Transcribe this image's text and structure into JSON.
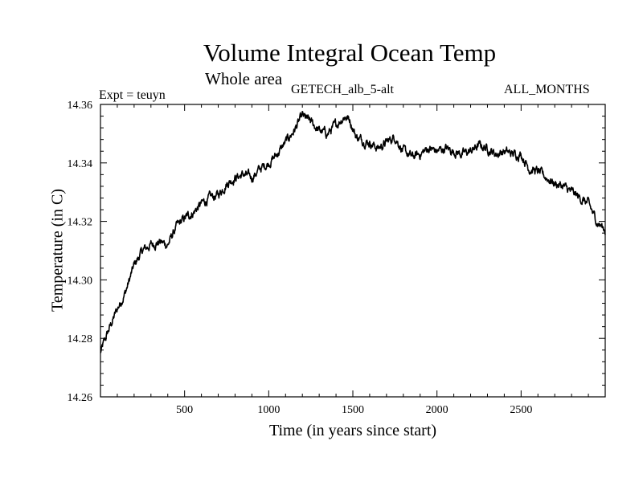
{
  "chart_data": {
    "type": "line",
    "title": "Volume Integral Ocean Temp",
    "subtitle": "Whole area",
    "annotations": {
      "left": "Expt = teuyn",
      "center": "GETECH_alb_5-alt",
      "right": "ALL_MONTHS"
    },
    "xlabel": "Time (in years since start)",
    "ylabel": "Temperature (in C)",
    "xlim": [
      0,
      3000
    ],
    "ylim": [
      14.26,
      14.36
    ],
    "xticks": [
      500,
      1000,
      1500,
      2000,
      2500
    ],
    "yticks": [
      "14.26",
      "14.28",
      "14.30",
      "14.32",
      "14.34",
      "14.36"
    ],
    "grid": false,
    "series": [
      {
        "x": [
          0,
          50,
          100,
          150,
          200,
          250,
          300,
          350,
          400,
          450,
          500,
          550,
          600,
          650,
          700,
          750,
          800,
          850,
          900,
          950,
          1000,
          1050,
          1100,
          1150,
          1200,
          1250,
          1300,
          1350,
          1400,
          1450,
          1480,
          1520,
          1550,
          1600,
          1650,
          1700,
          1750,
          1800,
          1850,
          1900,
          1950,
          2000,
          2050,
          2100,
          2150,
          2200,
          2250,
          2300,
          2350,
          2400,
          2450,
          2500,
          2550,
          2600,
          2650,
          2700,
          2750,
          2800,
          2850,
          2900,
          2950,
          3000
        ],
        "y": [
          14.275,
          14.283,
          14.29,
          14.296,
          14.305,
          14.31,
          14.312,
          14.313,
          14.312,
          14.318,
          14.321,
          14.323,
          14.326,
          14.328,
          14.329,
          14.333,
          14.335,
          14.336,
          14.335,
          14.338,
          14.34,
          14.343,
          14.347,
          14.351,
          14.356,
          14.354,
          14.351,
          14.35,
          14.353,
          14.356,
          14.355,
          14.349,
          14.348,
          14.347,
          14.345,
          14.347,
          14.349,
          14.344,
          14.342,
          14.343,
          14.345,
          14.344,
          14.345,
          14.344,
          14.343,
          14.344,
          14.346,
          14.345,
          14.343,
          14.344,
          14.343,
          14.343,
          14.338,
          14.337,
          14.335,
          14.333,
          14.332,
          14.33,
          14.328,
          14.326,
          14.32,
          14.317
        ]
      }
    ]
  }
}
